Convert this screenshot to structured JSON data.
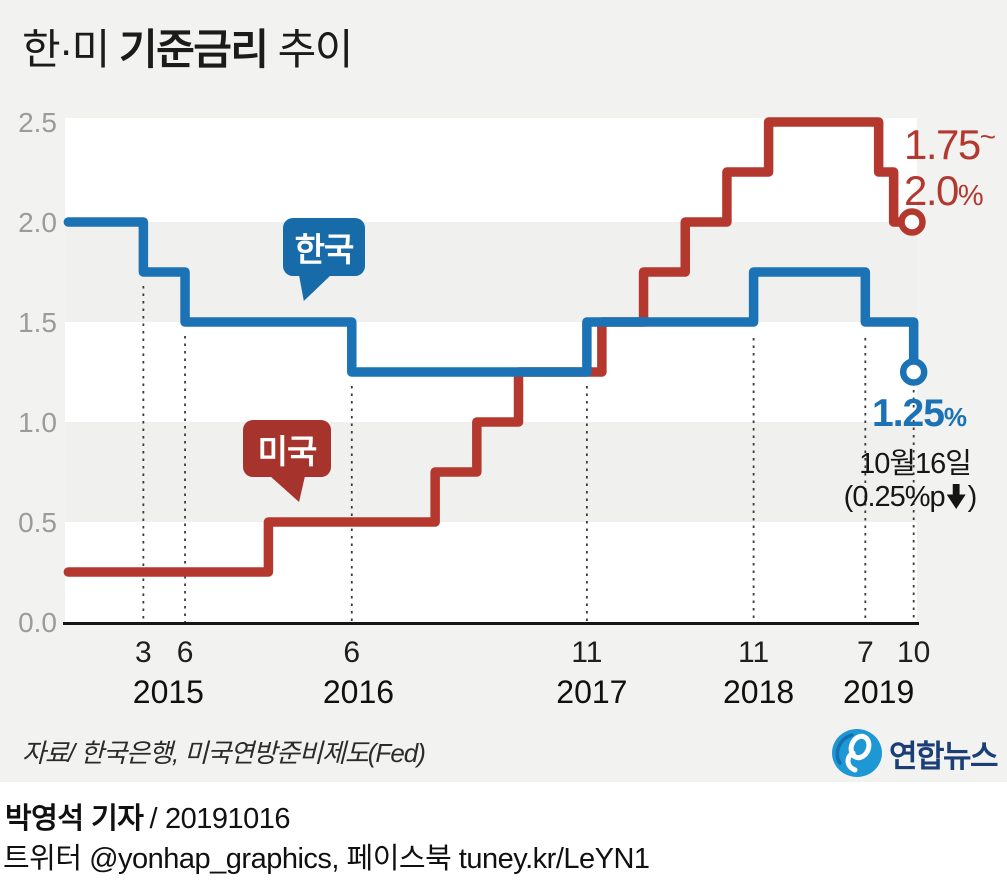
{
  "page": {
    "title_prefix": "한·미 ",
    "title_bold": "기준금리",
    "title_suffix": " 추이"
  },
  "annotations": {
    "us_rate_low": "1.75",
    "us_tilde": "~",
    "us_rate_high": "2.0",
    "pct": "%",
    "kr_rate": "1.25",
    "kr_pct": "%",
    "date_label": "10월16일",
    "change_open": "(0.25%p",
    "change_close": ")"
  },
  "icons": {
    "down_arrow": "down-arrow-icon",
    "logo_swirl": "yonhap-swirl-icon"
  },
  "footer": {
    "source": "자료/ 한국은행, 미국연방준비제도(Fed)",
    "logo_text": "연합뉴스",
    "reporter_name": "박영석 기자",
    "separator": "/",
    "date": "20191016",
    "social": "트위터 @yonhap_graphics, 페이스북 tuney.kr/LeYN1"
  },
  "chart_data": {
    "type": "line",
    "step": true,
    "title": "한·미 기준금리 추이",
    "unit": "%",
    "x_domain": [
      2014.7,
      2019.81
    ],
    "y_domain": [
      0,
      2.53
    ],
    "grid": "shaded-bands",
    "legend_position": "speech-bubbles-on-plot",
    "colors": {
      "korea": "#1b72b4",
      "us": "#b5382f",
      "korea_bubble": "#176ba8",
      "us_bubble": "#a6332c",
      "band": "#f0f0ee",
      "axis": "#161616",
      "tick_label": "#9b9b9b"
    },
    "y_ticks": [
      {
        "label": "2.5",
        "value": 2.5
      },
      {
        "label": "2.0",
        "value": 2.0
      },
      {
        "label": "1.5",
        "value": 1.5
      },
      {
        "label": "1.0",
        "value": 1.0
      },
      {
        "label": "0.5",
        "value": 0.5
      },
      {
        "label": "0.0",
        "value": 0.0
      }
    ],
    "x_ticks": [
      {
        "label": "3",
        "value": 2015.17
      },
      {
        "label": "6",
        "value": 2015.42
      },
      {
        "label": "6",
        "value": 2016.42
      },
      {
        "label": "11",
        "value": 2017.83
      },
      {
        "label": "11",
        "value": 2018.83
      },
      {
        "label": "7",
        "value": 2019.5
      },
      {
        "label": "10",
        "value": 2019.79
      }
    ],
    "year_ticks": [
      {
        "label": "2015",
        "value": 2015.32
      },
      {
        "label": "2016",
        "value": 2016.46
      },
      {
        "label": "2017",
        "value": 2017.86
      },
      {
        "label": "2018",
        "value": 2018.86
      },
      {
        "label": "2019",
        "value": 2019.58
      }
    ],
    "shade_bands": [
      [
        2.0,
        1.5
      ],
      [
        1.0,
        0.5
      ]
    ],
    "guides": [
      {
        "x": 2015.17,
        "y_from": 1.68
      },
      {
        "x": 2015.42,
        "y_from": 1.43
      },
      {
        "x": 2016.42,
        "y_from": 1.18
      },
      {
        "x": 2017.83,
        "y_from": 1.18
      },
      {
        "x": 2018.83,
        "y_from": 1.42
      },
      {
        "x": 2019.5,
        "y_from": 1.42
      },
      {
        "x": 2019.79,
        "y_from": 1.16
      }
    ],
    "series": [
      {
        "name": "한국",
        "color": "#1b72b4",
        "final_label": "1.25%",
        "points": [
          [
            2014.72,
            2.0
          ],
          [
            2015.17,
            1.75
          ],
          [
            2015.42,
            1.5
          ],
          [
            2016.42,
            1.25
          ],
          [
            2017.83,
            1.5
          ],
          [
            2018.83,
            1.75
          ],
          [
            2019.5,
            1.5
          ],
          [
            2019.79,
            1.25
          ]
        ],
        "end_x": 2019.79,
        "end_marker": [
          2019.79,
          1.25
        ]
      },
      {
        "name": "미국",
        "color": "#b5382f",
        "final_label": "1.75~2.0%",
        "points": [
          [
            2014.72,
            0.25
          ],
          [
            2015.92,
            0.5
          ],
          [
            2016.92,
            0.75
          ],
          [
            2017.17,
            1.0
          ],
          [
            2017.42,
            1.25
          ],
          [
            2017.92,
            1.5
          ],
          [
            2018.17,
            1.75
          ],
          [
            2018.42,
            2.0
          ],
          [
            2018.67,
            2.25
          ],
          [
            2018.92,
            2.5
          ],
          [
            2019.58,
            2.25
          ],
          [
            2019.67,
            2.0
          ]
        ],
        "end_x": 2019.78,
        "end_marker": [
          2019.78,
          2.0
        ]
      }
    ]
  }
}
